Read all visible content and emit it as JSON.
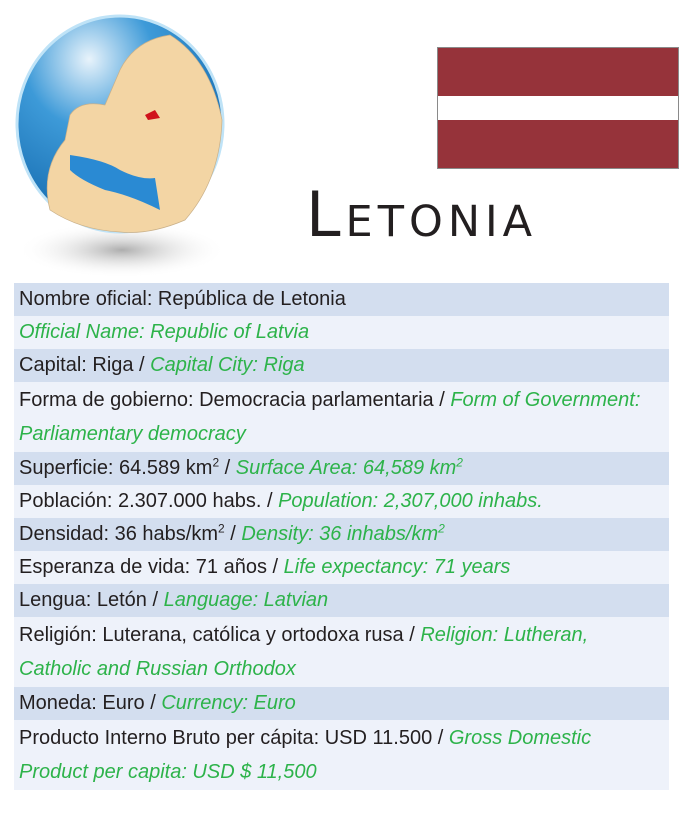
{
  "title": "Letonia",
  "flag": {
    "colors": [
      "#96333a",
      "#ffffff",
      "#96333a"
    ]
  },
  "globe": {
    "highlight_color": "#d0121b",
    "land_color": "#f3d5a4",
    "sea_color": "#1b86cf"
  },
  "colors": {
    "english_text": "#2db34a",
    "row_dark": "#d3deef",
    "row_light": "#eef2fa"
  },
  "rows": [
    {
      "es": "Nombre oficial: República de Letonia",
      "en": ""
    },
    {
      "es": "",
      "en": "Official Name: Republic of Latvia"
    },
    {
      "es": "Capital: Riga / ",
      "en": "Capital City: Riga"
    },
    {
      "es": "Forma de gobierno: Democracia parlamentaria  / ",
      "en": "Form of Government: Parliamentary democracy"
    },
    {
      "es": "Superficie: 64.589 km",
      "en": "Surface Area: 64,589 km"
    },
    {
      "es": "Población: 2.307.000 habs. / ",
      "en": "Population: 2,307,000 inhabs."
    },
    {
      "es": "Densidad: 36 habs/km",
      "en": "Density: 36  inhabs/km"
    },
    {
      "es": "Esperanza de vida: 71 años / ",
      "en": "Life expectancy: 71 years"
    },
    {
      "es": "Lengua: Letón / ",
      "en": "Language: Latvian"
    },
    {
      "es": "Religión: Luterana, católica y ortodoxa rusa / ",
      "en": "Religion: Lutheran, Catholic and Russian Orthodox"
    },
    {
      "es": "Moneda: Euro / ",
      "en": "Currency: Euro"
    },
    {
      "es": "Producto Interno Bruto per cápita: USD 11.500 / ",
      "en": "Gross Domestic Product per capita: USD $ 11,500"
    }
  ],
  "superscript": "2",
  "separator": " / "
}
